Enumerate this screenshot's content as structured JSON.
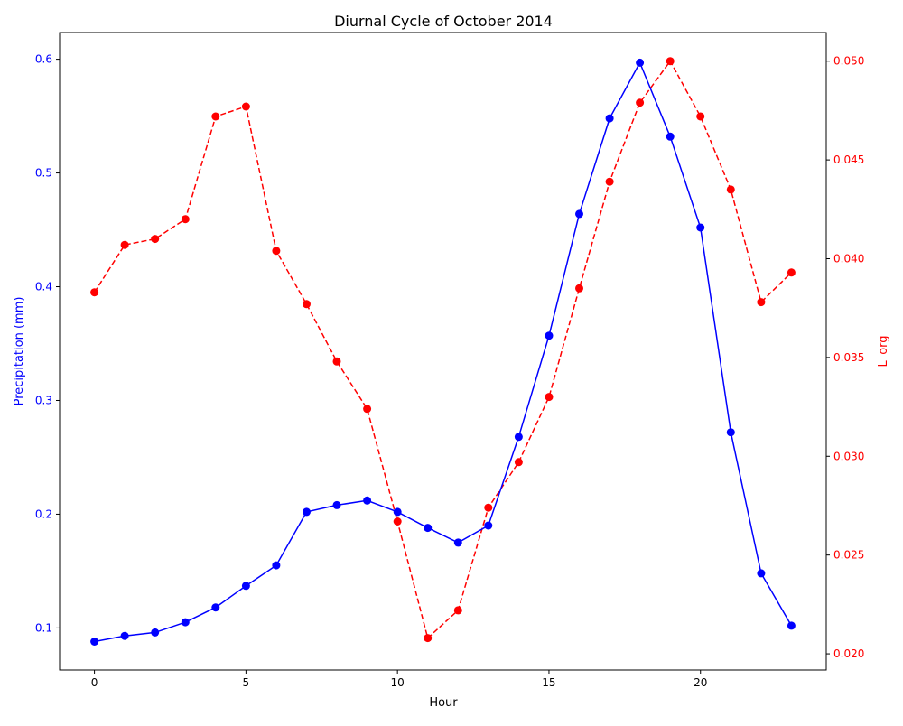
{
  "chart_data": {
    "type": "line",
    "title": "Diurnal Cycle of October 2014",
    "xlabel": "Hour",
    "x": [
      0,
      1,
      2,
      3,
      4,
      5,
      6,
      7,
      8,
      9,
      10,
      11,
      12,
      13,
      14,
      15,
      16,
      17,
      18,
      19,
      20,
      21,
      22,
      23
    ],
    "xlim": [
      -1.15,
      24.15
    ],
    "xticks": [
      0,
      5,
      10,
      15,
      20
    ],
    "grid": false,
    "legend": "none",
    "left_axis": {
      "label": "Precipitation (mm)",
      "color": "#0000ff",
      "ylim": [
        0.063,
        0.6235
      ],
      "ticks": [
        0.1,
        0.2,
        0.3,
        0.4,
        0.5,
        0.6
      ],
      "tick_labels": [
        "0.1",
        "0.2",
        "0.3",
        "0.4",
        "0.5",
        "0.6"
      ]
    },
    "right_axis": {
      "label": "L_org",
      "color": "#ff0000",
      "ylim": [
        0.01918,
        0.05145
      ],
      "ticks": [
        0.02,
        0.025,
        0.03,
        0.035,
        0.04,
        0.045,
        0.05
      ],
      "tick_labels": [
        "0.020",
        "0.025",
        "0.030",
        "0.035",
        "0.040",
        "0.045",
        "0.050"
      ]
    },
    "series": [
      {
        "axis": "left",
        "color": "#0000ff",
        "style": "solid",
        "marker": "circle",
        "values": [
          0.088,
          0.093,
          0.096,
          0.105,
          0.118,
          0.137,
          0.155,
          0.202,
          0.208,
          0.212,
          0.202,
          0.188,
          0.175,
          0.19,
          0.268,
          0.357,
          0.464,
          0.548,
          0.597,
          0.532,
          0.452,
          0.272,
          0.148,
          0.102
        ]
      },
      {
        "axis": "right",
        "color": "#ff0000",
        "style": "dashed",
        "marker": "circle",
        "values": [
          0.0383,
          0.0407,
          0.041,
          0.042,
          0.0472,
          0.0477,
          0.0404,
          0.0377,
          0.0348,
          0.0324,
          0.0267,
          0.0208,
          0.0222,
          0.0274,
          0.0297,
          0.033,
          0.0385,
          0.0439,
          0.0479,
          0.05,
          0.0472,
          0.0435,
          0.0378,
          0.0393
        ]
      }
    ]
  }
}
